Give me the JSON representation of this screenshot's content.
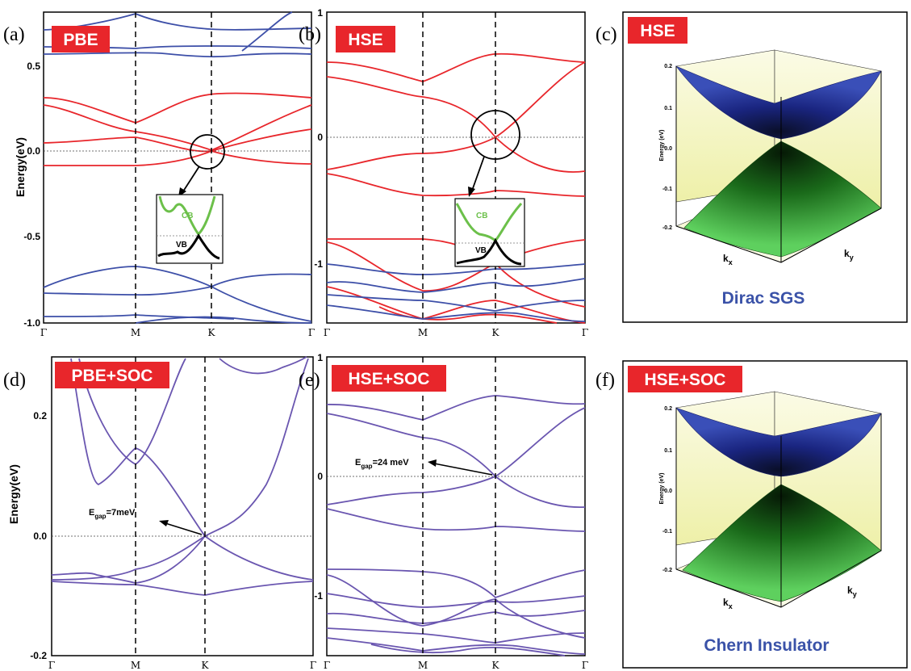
{
  "colors": {
    "badge": "#e8262b",
    "pbe_red": "#e8262b",
    "pbe_blue": "#3d4fa8",
    "soc_purple": "#6a56b0",
    "cb_green": "#6cc04a",
    "caption_blue": "#3a52a8",
    "surface_top": "#1f2e8c",
    "surface_bottom": "#2e9a2e"
  },
  "panels": [
    {
      "id": "a",
      "label": "(a)",
      "badge": "PBE",
      "ylabel": "Energy(eV)",
      "yticks": [
        "0.5",
        "0.0",
        "-0.5",
        "-1.0"
      ],
      "xticks": [
        "Γ",
        "M",
        "K",
        "Γ"
      ],
      "inset": {
        "cb": "CB",
        "vb": "VB"
      }
    },
    {
      "id": "b",
      "label": "(b)",
      "badge": "HSE",
      "yticks": [
        "1",
        "0",
        "-1"
      ],
      "xticks": [
        "Γ",
        "M",
        "K",
        "Γ"
      ],
      "inset": {
        "cb": "CB",
        "vb": "VB"
      }
    },
    {
      "id": "c",
      "label": "(c)",
      "badge": "HSE",
      "caption": "Dirac SGS",
      "zlabel": "Energy (eV)",
      "zticks": [
        "0.2",
        "0.1",
        "0.0",
        "-0.1",
        "-0.2"
      ],
      "kx": "k",
      "kx_sub": "x",
      "ky": "k",
      "ky_sub": "y"
    },
    {
      "id": "d",
      "label": "(d)",
      "badge": "PBE+SOC",
      "ylabel": "Energy(eV)",
      "yticks": [
        "0.2",
        "0.0",
        "-0.2"
      ],
      "xticks": [
        "Γ",
        "M",
        "K",
        "Γ"
      ],
      "gap": {
        "prefix": "E",
        "sub": "gap",
        "value": "=7meV"
      }
    },
    {
      "id": "e",
      "label": "(e)",
      "badge": "HSE+SOC",
      "yticks": [
        "1",
        "0",
        "-1"
      ],
      "xticks": [
        "Γ",
        "M",
        "K",
        "Γ"
      ],
      "gap": {
        "prefix": "E",
        "sub": "gap",
        "value": "=24 meV"
      }
    },
    {
      "id": "f",
      "label": "(f)",
      "badge": "HSE+SOC",
      "caption": "Chern Insulator",
      "zlabel": "Energy (eV)",
      "zticks": [
        "0.2",
        "0.1",
        "0.0",
        "-0.1",
        "-0.2"
      ],
      "kx": "k",
      "kx_sub": "x",
      "ky": "k",
      "ky_sub": "y"
    }
  ]
}
